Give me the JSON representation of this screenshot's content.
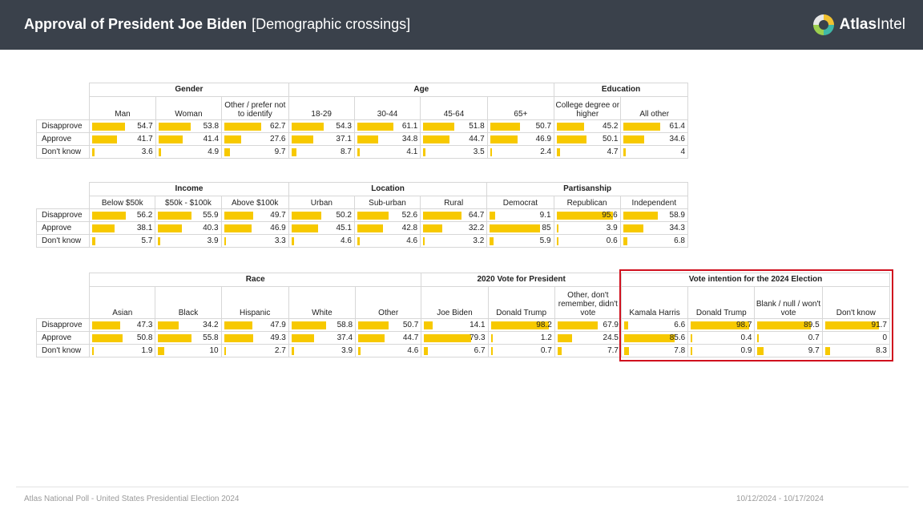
{
  "header": {
    "title": "Approval of President Joe Biden",
    "subtitle": "[Demographic crossings]",
    "logo_atlas": "Atlas",
    "logo_intel": "Intel",
    "background_color": "#3a414b"
  },
  "bar_color": "#f7c900",
  "highlight_color": "#d0101e",
  "rows": [
    "Disapprove",
    "Approve",
    "Don't know"
  ],
  "tables": [
    {
      "groups": [
        {
          "label": "Gender",
          "columns": [
            {
              "label": "Man",
              "values": [
                "54.7",
                "41.7",
                "3.6"
              ]
            },
            {
              "label": "Woman",
              "values": [
                "53.8",
                "41.4",
                "4.9"
              ]
            },
            {
              "label": "Other / prefer not to identify",
              "values": [
                "62.7",
                "27.6",
                "9.7"
              ]
            }
          ]
        },
        {
          "label": "Age",
          "columns": [
            {
              "label": "18-29",
              "values": [
                "54.3",
                "37.1",
                "8.7"
              ]
            },
            {
              "label": "30-44",
              "values": [
                "61.1",
                "34.8",
                "4.1"
              ]
            },
            {
              "label": "45-64",
              "values": [
                "51.8",
                "44.7",
                "3.5"
              ]
            },
            {
              "label": "65+",
              "values": [
                "50.7",
                "46.9",
                "2.4"
              ]
            }
          ]
        },
        {
          "label": "Education",
          "columns": [
            {
              "label": "College degree or higher",
              "values": [
                "45.2",
                "50.1",
                "4.7"
              ]
            },
            {
              "label": "All other",
              "values": [
                "61.4",
                "34.6",
                "4"
              ]
            }
          ]
        }
      ]
    },
    {
      "groups": [
        {
          "label": "Income",
          "columns": [
            {
              "label": "Below $50k",
              "values": [
                "56.2",
                "38.1",
                "5.7"
              ]
            },
            {
              "label": "$50k - $100k",
              "values": [
                "55.9",
                "40.3",
                "3.9"
              ]
            },
            {
              "label": "Above $100k",
              "values": [
                "49.7",
                "46.9",
                "3.3"
              ]
            }
          ]
        },
        {
          "label": "Location",
          "columns": [
            {
              "label": "Urban",
              "values": [
                "50.2",
                "45.1",
                "4.6"
              ]
            },
            {
              "label": "Sub-urban",
              "values": [
                "52.6",
                "42.8",
                "4.6"
              ]
            },
            {
              "label": "Rural",
              "values": [
                "64.7",
                "32.2",
                "3.2"
              ]
            }
          ]
        },
        {
          "label": "Partisanship",
          "columns": [
            {
              "label": "Democrat",
              "values": [
                "9.1",
                "85",
                "5.9"
              ]
            },
            {
              "label": "Republican",
              "values": [
                "95.6",
                "3.9",
                "0.6"
              ]
            },
            {
              "label": "Independent",
              "values": [
                "58.9",
                "34.3",
                "6.8"
              ]
            }
          ]
        }
      ]
    },
    {
      "groups": [
        {
          "label": "Race",
          "columns": [
            {
              "label": "Asian",
              "values": [
                "47.3",
                "50.8",
                "1.9"
              ]
            },
            {
              "label": "Black",
              "values": [
                "34.2",
                "55.8",
                "10"
              ]
            },
            {
              "label": "Hispanic",
              "values": [
                "47.9",
                "49.3",
                "2.7"
              ]
            },
            {
              "label": "White",
              "values": [
                "58.8",
                "37.4",
                "3.9"
              ]
            },
            {
              "label": "Other",
              "values": [
                "50.7",
                "44.7",
                "4.6"
              ]
            }
          ]
        },
        {
          "label": "2020 Vote for President",
          "columns": [
            {
              "label": "Joe Biden",
              "values": [
                "14.1",
                "79.3",
                "6.7"
              ]
            },
            {
              "label": "Donald Trump",
              "values": [
                "98.2",
                "1.2",
                "0.7"
              ]
            },
            {
              "label": "Other, don't remember, didn't vote",
              "values": [
                "67.9",
                "24.5",
                "7.7"
              ]
            }
          ]
        },
        {
          "label": "Vote intention for the 2024 Election",
          "columns": [
            {
              "label": "Kamala Harris",
              "values": [
                "6.6",
                "85.6",
                "7.8"
              ]
            },
            {
              "label": "Donald Trump",
              "values": [
                "98.7",
                "0.4",
                "0.9"
              ]
            },
            {
              "label": "Blank / null / won't vote",
              "values": [
                "89.5",
                "0.7",
                "9.7"
              ]
            },
            {
              "label": "Don't know",
              "values": [
                "91.7",
                "0",
                "8.3"
              ]
            }
          ]
        }
      ]
    }
  ],
  "footer": {
    "left": "Atlas National Poll - United States Presidential Election 2024",
    "right": "10/12/2024 - 10/17/2024"
  }
}
